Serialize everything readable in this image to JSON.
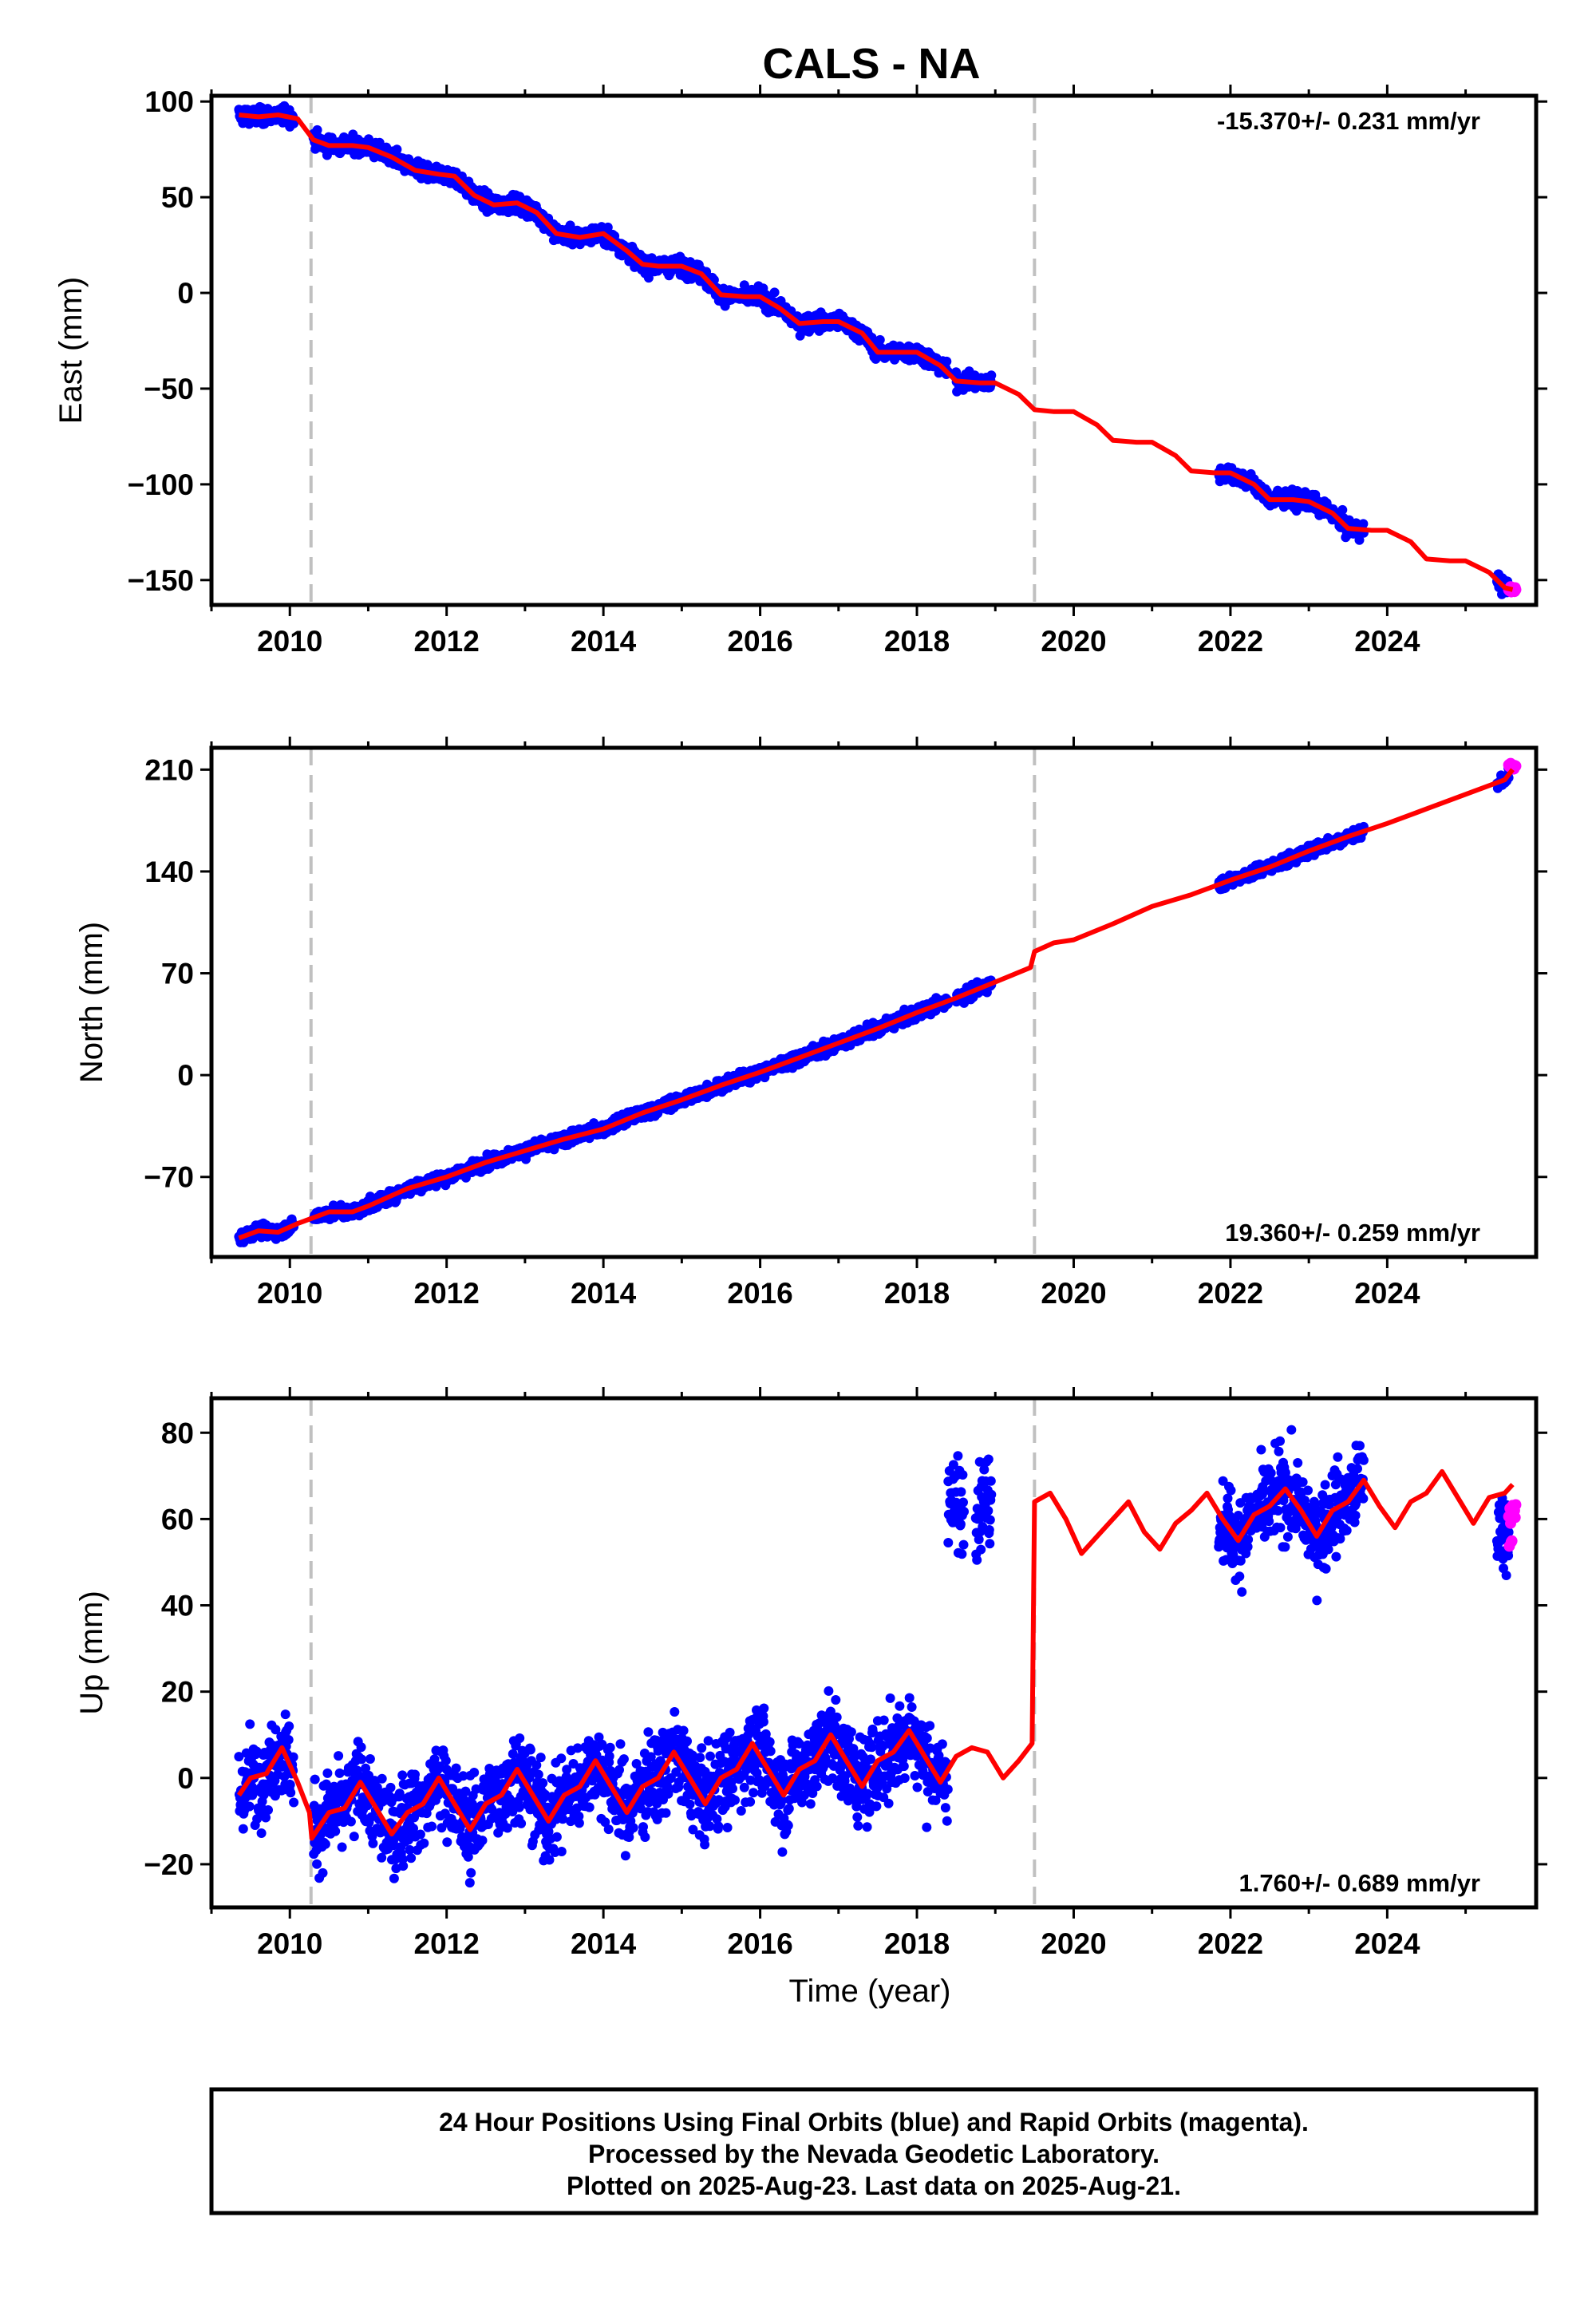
{
  "title": "CALS - NA",
  "colors": {
    "final_orbits": "#0000ff",
    "rapid_orbits": "#ff00ff",
    "model": "#ff0000",
    "offset_lines": "#c0c0c0"
  },
  "footer": {
    "line1": "24 Hour Positions Using Final Orbits (blue) and Rapid Orbits (magenta).",
    "line2": "Processed by the Nevada Geodetic Laboratory.",
    "line3": "Plotted on 2025-Aug-23. Last data on 2025-Aug-21."
  },
  "chart_data": [
    {
      "type": "scatter",
      "ylabel": "East (mm)",
      "xlabel": "",
      "rate_label": "-15.370+/- 0.231 mm/yr",
      "rate_position": "top-right",
      "xlim": [
        2009.0,
        2025.9
      ],
      "ylim": [
        -163,
        103
      ],
      "xticks": [
        "2010",
        "2012",
        "2014",
        "2016",
        "2018",
        "2020",
        "2022",
        "2024"
      ],
      "yticks": [
        "100",
        "50",
        "0",
        "−50",
        "−100",
        "−150"
      ],
      "offset_lines_x": [
        2010.27,
        2019.5
      ],
      "model": {
        "x": [
          2009.35,
          2009.6,
          2009.85,
          2010.1,
          2010.3,
          2010.5,
          2010.8,
          2011.0,
          2011.3,
          2011.6,
          2011.9,
          2012.1,
          2012.35,
          2012.6,
          2012.9,
          2013.15,
          2013.4,
          2013.7,
          2014.0,
          2014.3,
          2014.5,
          2014.7,
          2015.0,
          2015.25,
          2015.5,
          2015.8,
          2016.0,
          2016.25,
          2016.5,
          2016.8,
          2017.0,
          2017.3,
          2017.5,
          2017.8,
          2018.0,
          2018.3,
          2018.5,
          2018.8,
          2019.0,
          2019.3,
          2019.5,
          2019.75,
          2020.0,
          2020.3,
          2020.5,
          2020.8,
          2021.0,
          2021.3,
          2021.5,
          2021.8,
          2022.0,
          2022.3,
          2022.5,
          2022.8,
          2023.0,
          2023.3,
          2023.5,
          2023.8,
          2024.0,
          2024.3,
          2024.5,
          2024.8,
          2025.0,
          2025.3,
          2025.5,
          2025.6
        ],
        "y": [
          93,
          92,
          93,
          91,
          80,
          77,
          77,
          76,
          71,
          64,
          62,
          61,
          51,
          46,
          47,
          42,
          31,
          29,
          31,
          22,
          15,
          14,
          14,
          10,
          -1,
          -2,
          -2,
          -8,
          -16,
          -15,
          -15,
          -21,
          -31,
          -31,
          -31,
          -38,
          -46,
          -47,
          -47,
          -53,
          -61,
          -62,
          -62,
          -69,
          -77,
          -78,
          -78,
          -85,
          -93,
          -94,
          -94,
          -100,
          -108,
          -108,
          -109,
          -115,
          -123,
          -124,
          -124,
          -130,
          -139,
          -140,
          -140,
          -146,
          -154,
          -155
        ]
      },
      "final_segments": [
        {
          "x_start": 2009.35,
          "x_end": 2010.05
        },
        {
          "x_start": 2010.3,
          "x_end": 2018.4
        },
        {
          "x_start": 2018.5,
          "x_end": 2018.95
        },
        {
          "x_start": 2021.85,
          "x_end": 2023.7
        },
        {
          "x_start": 2025.4,
          "x_end": 2025.55
        }
      ],
      "final_scatter_mm": 3,
      "rapid": {
        "x_start": 2025.55,
        "x_end": 2025.64,
        "y": -155
      }
    },
    {
      "type": "scatter",
      "ylabel": "North (mm)",
      "xlabel": "",
      "rate_label": "19.360+/- 0.259 mm/yr",
      "rate_position": "bottom-right",
      "xlim": [
        2009.0,
        2025.9
      ],
      "ylim": [
        -125,
        225
      ],
      "xticks": [
        "2010",
        "2012",
        "2014",
        "2016",
        "2018",
        "2020",
        "2022",
        "2024"
      ],
      "yticks": [
        "210",
        "140",
        "70",
        "0",
        "−70"
      ],
      "offset_lines_x": [
        2010.27,
        2019.5
      ],
      "model": {
        "x": [
          2009.35,
          2009.6,
          2009.85,
          2010.1,
          2010.3,
          2010.5,
          2010.8,
          2011.0,
          2011.5,
          2012.0,
          2012.5,
          2013.0,
          2013.5,
          2014.0,
          2014.5,
          2015.0,
          2015.5,
          2016.0,
          2016.5,
          2017.0,
          2017.5,
          2018.0,
          2018.5,
          2019.0,
          2019.45,
          2019.5,
          2019.75,
          2020.0,
          2020.5,
          2021.0,
          2021.5,
          2022.0,
          2022.5,
          2023.0,
          2023.5,
          2024.0,
          2024.5,
          2025.0,
          2025.5,
          2025.6
        ],
        "y": [
          -112,
          -107,
          -108,
          -102,
          -98,
          -94,
          -94,
          -90,
          -78,
          -70,
          -60,
          -52,
          -44,
          -37,
          -26,
          -17,
          -7,
          2,
          12,
          22,
          32,
          43,
          53,
          64,
          74,
          85,
          91,
          93,
          104,
          116,
          124,
          134,
          143,
          154,
          164,
          173,
          183,
          193,
          203,
          210
        ]
      },
      "final_segments": [
        {
          "x_start": 2009.35,
          "x_end": 2010.05
        },
        {
          "x_start": 2010.3,
          "x_end": 2018.4
        },
        {
          "x_start": 2018.5,
          "x_end": 2018.95
        },
        {
          "x_start": 2021.85,
          "x_end": 2023.7
        },
        {
          "x_start": 2025.4,
          "x_end": 2025.55
        }
      ],
      "final_scatter_mm": 3,
      "rapid": {
        "x_start": 2025.55,
        "x_end": 2025.64,
        "y": 212
      }
    },
    {
      "type": "scatter",
      "ylabel": "Up (mm)",
      "xlabel": "Time (year)",
      "rate_label": "1.760+/- 0.689 mm/yr",
      "rate_position": "bottom-right",
      "xlim": [
        2009.0,
        2025.9
      ],
      "ylim": [
        -30,
        88
      ],
      "xticks": [
        "2010",
        "2012",
        "2014",
        "2016",
        "2018",
        "2020",
        "2022",
        "2024"
      ],
      "yticks": [
        "80",
        "60",
        "40",
        "20",
        "0",
        "−20"
      ],
      "offset_lines_x": [
        2010.27,
        2019.5
      ],
      "model": {
        "x": [
          2009.35,
          2009.5,
          2009.7,
          2009.9,
          2010.1,
          2010.25,
          2010.28,
          2010.5,
          2010.7,
          2010.9,
          2011.1,
          2011.3,
          2011.5,
          2011.7,
          2011.9,
          2012.1,
          2012.3,
          2012.5,
          2012.7,
          2012.9,
          2013.1,
          2013.3,
          2013.5,
          2013.7,
          2013.9,
          2014.1,
          2014.3,
          2014.5,
          2014.7,
          2014.9,
          2015.1,
          2015.3,
          2015.5,
          2015.7,
          2015.9,
          2016.1,
          2016.3,
          2016.5,
          2016.7,
          2016.9,
          2017.1,
          2017.3,
          2017.5,
          2017.7,
          2017.9,
          2018.1,
          2018.3,
          2018.5,
          2018.7,
          2018.9,
          2019.1,
          2019.3,
          2019.47,
          2019.5,
          2019.7,
          2019.9,
          2020.1,
          2020.3,
          2020.5,
          2020.7,
          2020.9,
          2021.1,
          2021.3,
          2021.5,
          2021.7,
          2021.9,
          2022.1,
          2022.3,
          2022.5,
          2022.7,
          2022.9,
          2023.1,
          2023.3,
          2023.5,
          2023.7,
          2023.9,
          2024.1,
          2024.3,
          2024.5,
          2024.7,
          2024.9,
          2025.1,
          2025.3,
          2025.5,
          2025.6
        ],
        "y": [
          -4,
          0,
          1,
          7,
          -1,
          -8,
          -14,
          -8,
          -7,
          -1,
          -7,
          -13,
          -8,
          -6,
          0,
          -6,
          -12,
          -6,
          -4,
          2,
          -4,
          -10,
          -4,
          -2,
          4,
          -2,
          -8,
          -2,
          0,
          6,
          0,
          -6,
          0,
          2,
          8,
          2,
          -4,
          2,
          4,
          10,
          4,
          -2,
          4,
          6,
          11,
          5,
          -1,
          5,
          7,
          6,
          0,
          4,
          8,
          64,
          66,
          60,
          52,
          56,
          60,
          64,
          57,
          53,
          59,
          62,
          66,
          60,
          55,
          61,
          63,
          67,
          62,
          56,
          62,
          64,
          69,
          63,
          58,
          64,
          66,
          71,
          65,
          59,
          65,
          66,
          68
        ]
      },
      "final_segments": [
        {
          "x_start": 2009.35,
          "x_end": 2010.05
        },
        {
          "x_start": 2010.3,
          "x_end": 2018.4
        },
        {
          "x_start": 2018.4,
          "x_end": 2018.6
        },
        {
          "x_start": 2018.75,
          "x_end": 2018.95
        },
        {
          "x_start": 2021.85,
          "x_end": 2023.7
        },
        {
          "x_start": 2025.4,
          "x_end": 2025.55
        }
      ],
      "final_scatter_mm": 7,
      "final_override_y": [
        {
          "x_start": 2018.4,
          "x_end": 2018.6,
          "y": 63
        },
        {
          "x_start": 2018.75,
          "x_end": 2018.95,
          "y": 64
        },
        {
          "x_start": 2025.4,
          "x_end": 2025.55,
          "y": 57
        }
      ],
      "rapid": {
        "x_start": 2025.55,
        "x_end": 2025.64,
        "y": 60
      }
    }
  ]
}
